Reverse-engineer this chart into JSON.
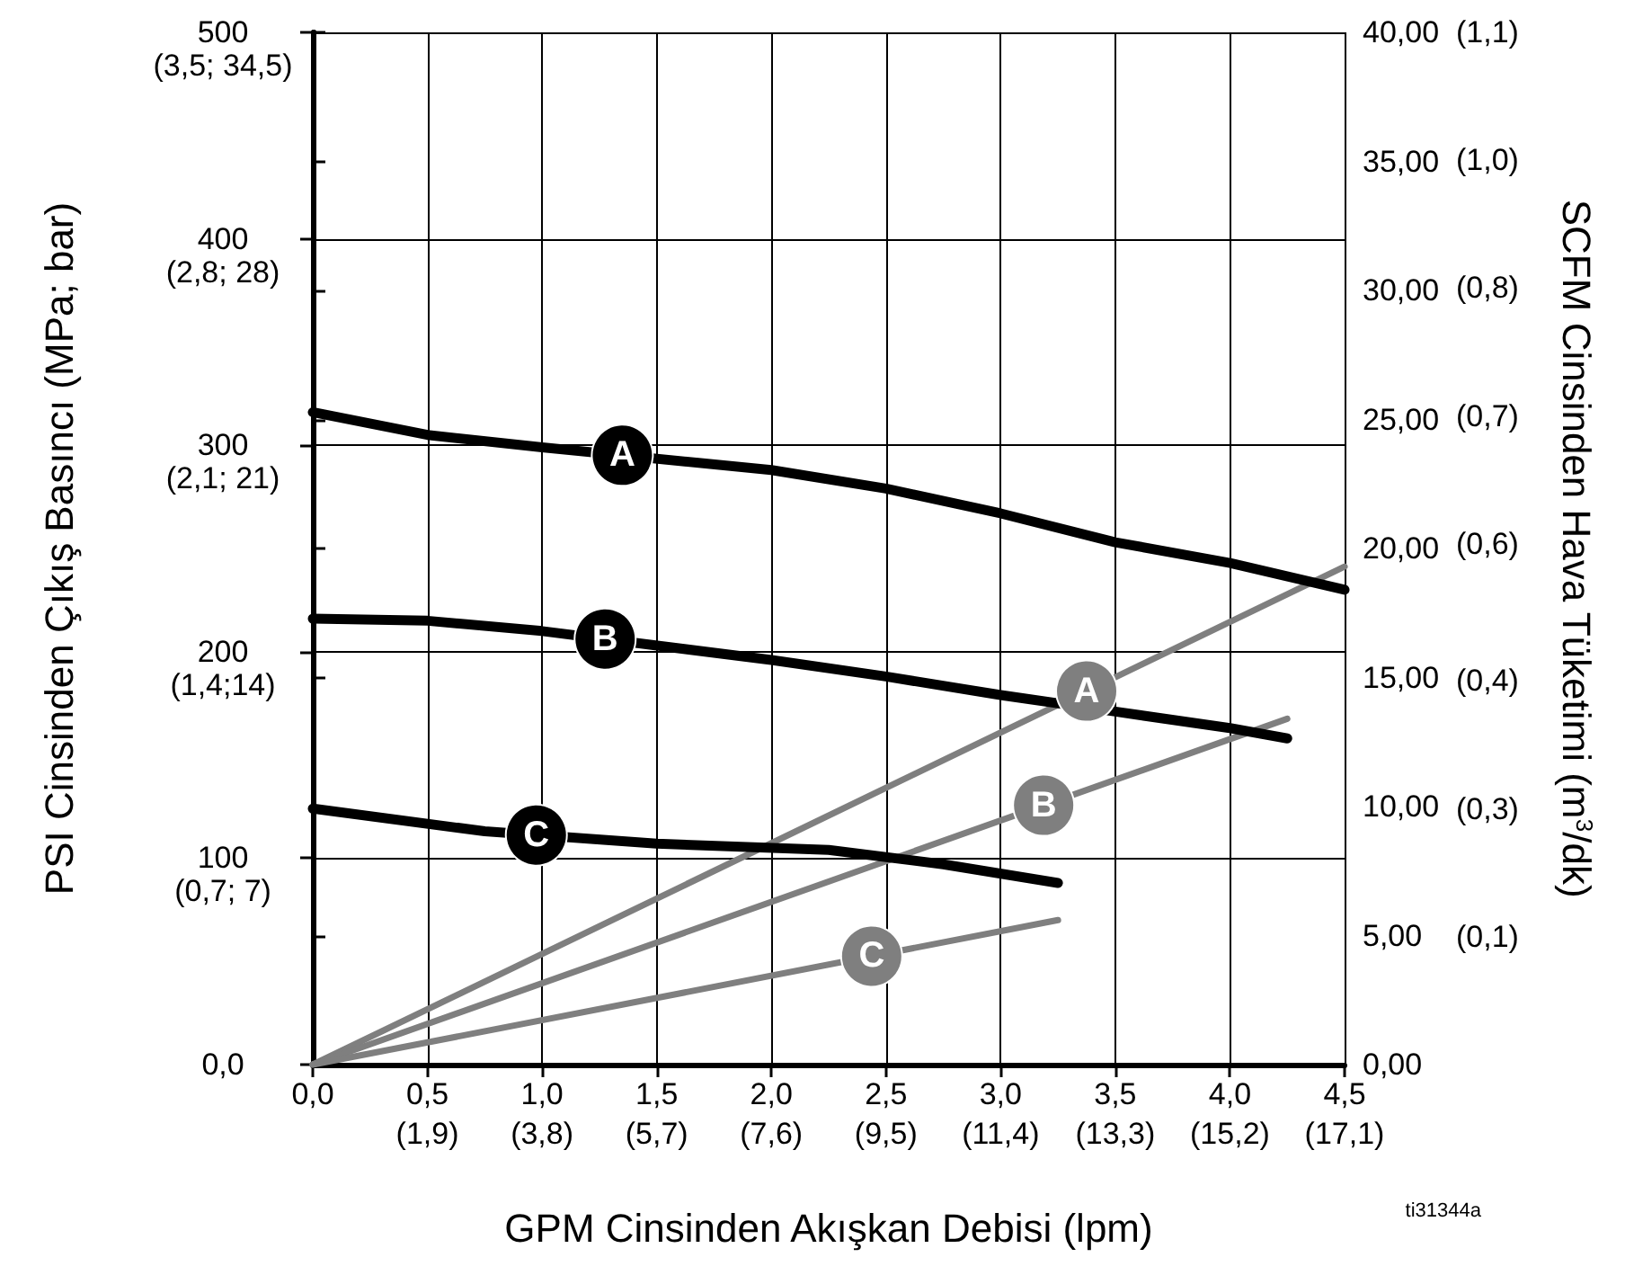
{
  "chart_data": {
    "type": "line",
    "xlabel": "GPM Cinsinden Akışkan Debisi (lpm)",
    "ylabel": "PSI Cinsinden Çıkış Basıncı (MPa; bar)",
    "y2label": "SCFM Cinsinden Hava Tüketimi (m$^{3}$/dk)",
    "xlim": [
      0,
      4.5
    ],
    "xticks": [
      {
        "value": 0,
        "label": "0,0"
      },
      {
        "value": 0.5,
        "label": "0,5"
      },
      {
        "value": 1,
        "label": "1,0"
      },
      {
        "value": 1.5,
        "label": "1,5"
      },
      {
        "value": 2,
        "label": "2,0"
      },
      {
        "value": 2.5,
        "label": "2,5"
      },
      {
        "value": 3,
        "label": "3,0"
      },
      {
        "value": 3.5,
        "label": "3,5"
      },
      {
        "value": 4,
        "label": "4,0"
      },
      {
        "value": 4.5,
        "label": "4,5"
      }
    ],
    "x2lim": [
      0,
      17.1
    ],
    "x2ticks": [
      {
        "value": 1.9,
        "label": "(1,9)"
      },
      {
        "value": 3.8,
        "label": "(3,8)"
      },
      {
        "value": 5.7,
        "label": "(5,7)"
      },
      {
        "value": 7.6,
        "label": "(7,6)"
      },
      {
        "value": 9.5,
        "label": "(9,5)"
      },
      {
        "value": 11.4,
        "label": "(11,4)"
      },
      {
        "value": 13.3,
        "label": "(13,3)"
      },
      {
        "value": 15.2,
        "label": "(15,2)"
      },
      {
        "value": 17.1,
        "label": "(17,1)"
      }
    ],
    "ylim": [
      0,
      500
    ],
    "yticks": [
      {
        "value": 0,
        "label": "0,0"
      },
      100,
      200,
      300,
      400,
      500
    ],
    "y2lim": [
      0,
      40
    ],
    "y2ticks": [
      {
        "value": 0,
        "label": "0,00"
      },
      {
        "value": 5,
        "label": "5,00"
      },
      {
        "value": 10,
        "label": "10,00"
      },
      {
        "value": 15,
        "label": "15,00"
      },
      {
        "value": 20,
        "label": "20,00"
      },
      {
        "value": 25,
        "label": "25,00"
      },
      {
        "value": 30,
        "label": "30,00"
      },
      {
        "value": 35,
        "label": "35,00"
      },
      {
        "value": 40,
        "label": "40,00"
      }
    ],
    "y3lim": [
      0,
      1.13
    ],
    "y3ticks": [
      {
        "value": 0.14,
        "label": "(0,1)"
      },
      {
        "value": 0.28,
        "label": "(0,3)"
      },
      {
        "value": 0.42,
        "label": "(0,4)"
      },
      {
        "value": 0.57,
        "label": "(0,6)"
      },
      {
        "value": 0.71,
        "label": "(0,7)"
      },
      {
        "value": 0.85,
        "label": "(0,8)"
      },
      {
        "value": 0.99,
        "label": "(1,0)"
      },
      {
        "value": 1.13,
        "label": "(1,1)"
      }
    ],
    "grid": true,
    "legend": false,
    "marker": "none",
    "line_style": "solid",
    "series": [
      {
        "name": "A",
        "color": "#000000",
        "x": [
          0,
          0.5,
          1,
          2,
          2.5,
          3,
          3.5,
          4,
          4.5
        ],
        "values": [
          316,
          305,
          299,
          288,
          279,
          267,
          253,
          243,
          230
        ]
      },
      {
        "name": "B",
        "color": "#000000",
        "x": [
          0,
          0.5,
          1,
          2,
          2.5,
          3,
          3.5,
          4,
          4.25
        ],
        "values": [
          216,
          215,
          210,
          196,
          188,
          179,
          171,
          163,
          158
        ]
      },
      {
        "name": "C",
        "color": "#000000",
        "x": [
          0,
          0.75,
          1.5,
          2.25,
          2.75,
          3.25
        ],
        "values": [
          124,
          113,
          107,
          104,
          97,
          88
        ]
      },
      {
        "name": "A",
        "color": "#7f7f7f",
        "axis": "y2",
        "x": [
          0,
          4.5
        ],
        "values": [
          0,
          19.3
        ]
      },
      {
        "name": "B",
        "color": "#7f7f7f",
        "axis": "y2",
        "x": [
          0,
          4.25
        ],
        "values": [
          0,
          13.4
        ]
      },
      {
        "name": "C",
        "color": "#7f7f7f",
        "axis": "y2",
        "x": [
          0,
          3.25
        ],
        "values": [
          0,
          5.6
        ]
      }
    ],
    "annotations": [
      "(0,7; 7)",
      "(1,4;14)",
      "(2,1; 21)",
      "(2,8; 28)",
      "(3,5; 34,5)",
      "ti31344a"
    ]
  }
}
